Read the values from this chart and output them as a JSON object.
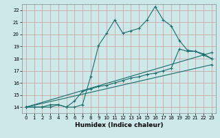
{
  "title": "",
  "xlabel": "Humidex (Indice chaleur)",
  "bg_color": "#cce8e8",
  "grid_color": "#aacccc",
  "line_color": "#1a6b6b",
  "xlim": [
    -0.5,
    23.5
  ],
  "ylim": [
    13.5,
    22.5
  ],
  "xticks": [
    0,
    1,
    2,
    3,
    4,
    5,
    6,
    7,
    8,
    9,
    10,
    11,
    12,
    13,
    14,
    15,
    16,
    17,
    18,
    19,
    20,
    21,
    22,
    23
  ],
  "yticks": [
    14,
    15,
    16,
    17,
    18,
    19,
    20,
    21,
    22
  ],
  "series": [
    {
      "x": [
        0,
        1,
        2,
        3,
        4,
        5,
        6,
        7,
        8,
        9,
        10,
        11,
        12,
        13,
        14,
        15,
        16,
        17,
        18,
        19,
        20,
        21,
        22,
        23
      ],
      "y": [
        14,
        14,
        14,
        14.2,
        14.2,
        14,
        14,
        14.2,
        16.5,
        19.1,
        20.1,
        21.2,
        20.1,
        20.3,
        20.5,
        21.2,
        22.3,
        21.2,
        20.7,
        19.5,
        18.7,
        18.6,
        18.3,
        18.0
      ]
    },
    {
      "x": [
        0,
        23
      ],
      "y": [
        14,
        18.5
      ]
    },
    {
      "x": [
        0,
        23
      ],
      "y": [
        14,
        17.5
      ]
    },
    {
      "x": [
        0,
        1,
        2,
        3,
        4,
        5,
        6,
        7,
        8,
        9,
        10,
        11,
        12,
        13,
        14,
        15,
        16,
        17,
        18,
        19,
        20,
        21,
        22,
        23
      ],
      "y": [
        14,
        14,
        14,
        14,
        14.2,
        14,
        14.5,
        15.3,
        15.5,
        15.7,
        15.8,
        16.0,
        16.2,
        16.4,
        16.5,
        16.7,
        16.8,
        17.0,
        17.2,
        18.8,
        18.6,
        18.6,
        18.4,
        18.0
      ]
    }
  ]
}
